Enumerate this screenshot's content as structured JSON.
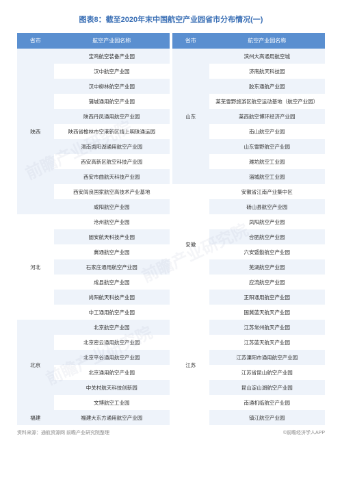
{
  "title": "图表8：截至2020年末中国航空产业园省市分布情况(一)",
  "headers": {
    "province": "省市",
    "parkName": "航空产业园名称"
  },
  "leftTable": [
    {
      "prov": "陕西",
      "rows": [
        "宝鸡航空装备产业园",
        "汉中航空产业园",
        "汉中柳林航空产业园",
        "蒲城通用航空产业园",
        "陕西丹凤通用航空产业园",
        "陕西省榆林市空港新区靖上明珠通运园",
        "渭南卤阳湖通用航空产业园",
        "西安高新区航空科技产业园",
        "西安市曲航天科技产业园",
        "西安阎良国家航空高技术产业基地",
        "咸阳航空产业园"
      ]
    },
    {
      "prov": "河北",
      "rows": [
        "沧州航空产业园",
        "固安航天科技产业园",
        "冀通航空产业园",
        "石家庄通用航空产业园",
        "成县航空产业园",
        "尚阳航天科技产业园",
        "中工通用航空产业园"
      ]
    },
    {
      "prov": "北京",
      "rows": [
        "北京航空产业园",
        "北京密云通用航空产业园",
        "北京平谷通用航空产业园",
        "北京通用航空产业园",
        "中关村航天科技创新园",
        "文博航空工业园"
      ]
    },
    {
      "prov": "福建",
      "rows": [
        "福建大东方通用航空产业园"
      ]
    }
  ],
  "rightTable": [
    {
      "prov": "山东",
      "rows": [
        "滨州大高通用航空城",
        "济南航天科技园",
        "胶东通航产业园",
        "莱芜雪野旅游区航空运动基地（航空产业园）",
        "莱西航空博环经济产业园",
        "南山航空产业园",
        "山东雪野航空产业园",
        "潍坊航空工业园",
        "淄城航空工业园"
      ]
    },
    {
      "prov": "安徽",
      "rows": [
        "安徽省江南产业集中区",
        "砀山县航空产业园",
        "凤阳航空产业园",
        "合肥航空产业园",
        "六安暨勤航空产业园",
        "芜湖航空产业园",
        "应流航空产业园",
        "正阳通用航空产业园"
      ]
    },
    {
      "prov": "江苏",
      "rows": [
        "国冀蓝天航天产业园",
        "江苏常州航天产业园",
        "江苏蓝天航天产业园",
        "江苏溧阳市通用航空产业园",
        "江苏省昆山航空产业园",
        "昆山淀山湖航空产业园",
        "南通机临航空产业园",
        "镇江航空产业园"
      ]
    }
  ],
  "footer": {
    "source": "资料来源：通航资源网 前瞻产业研究院整理",
    "app": "©前瞻经济学人APP"
  },
  "watermark": "前瞻产业研究院",
  "colors": {
    "titleColor": "#3a6fb5",
    "headerBg": "#5a8fd0",
    "headerText": "#ffffff",
    "rowOdd": "#eef3fa",
    "rowEven": "#ffffff",
    "bodyText": "#333333",
    "footerText": "#888888"
  }
}
